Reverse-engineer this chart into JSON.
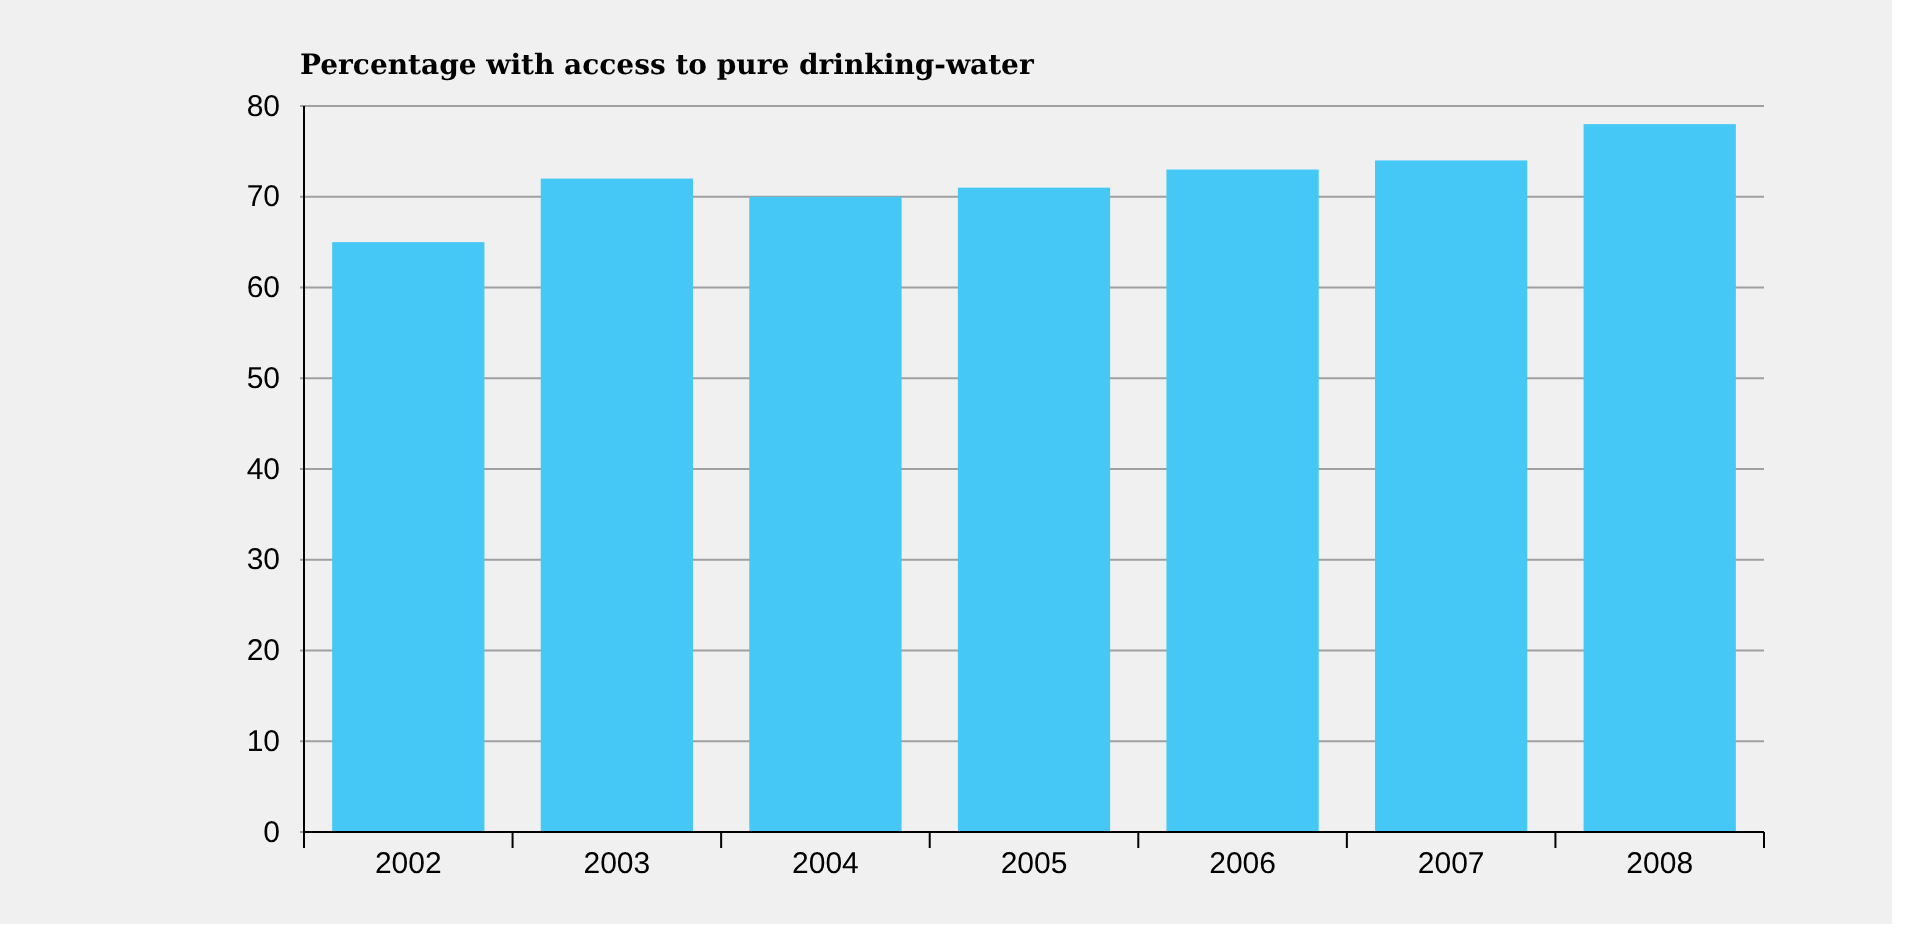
{
  "chart_data": {
    "type": "bar",
    "title": "Percentage with access to pure drinking-water",
    "categories": [
      "2002",
      "2003",
      "2004",
      "2005",
      "2006",
      "2007",
      "2008"
    ],
    "values": [
      65,
      72,
      70,
      71,
      73,
      74,
      78
    ],
    "color": "#45c8f5",
    "ylim": [
      0,
      80
    ],
    "yticks": [
      0,
      10,
      20,
      30,
      40,
      50,
      60,
      70,
      80
    ],
    "grid": "y"
  }
}
